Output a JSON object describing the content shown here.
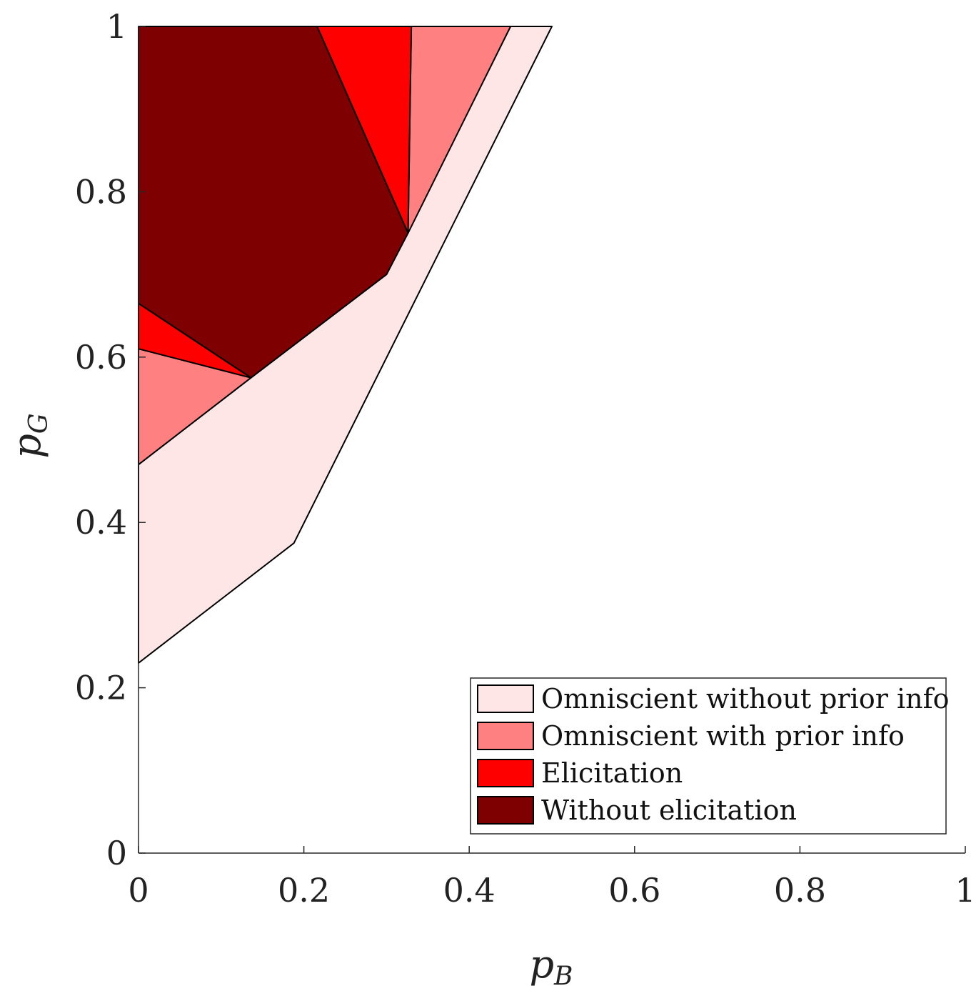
{
  "chart_data": {
    "type": "area",
    "title": "",
    "xlabel": {
      "main": "p",
      "sub": "B"
    },
    "ylabel": {
      "main": "p",
      "sub": "G"
    },
    "xlim": [
      0,
      1
    ],
    "ylim": [
      0,
      1
    ],
    "x_ticks": [
      {
        "value": 0,
        "label": "0"
      },
      {
        "value": 0.2,
        "label": "0.2"
      },
      {
        "value": 0.4,
        "label": "0.4"
      },
      {
        "value": 0.6,
        "label": "0.6"
      },
      {
        "value": 0.8,
        "label": "0.8"
      },
      {
        "value": 1,
        "label": "1"
      }
    ],
    "y_ticks": [
      {
        "value": 0,
        "label": "0"
      },
      {
        "value": 0.2,
        "label": "0.2"
      },
      {
        "value": 0.4,
        "label": "0.4"
      },
      {
        "value": 0.6,
        "label": "0.6"
      },
      {
        "value": 0.8,
        "label": "0.8"
      },
      {
        "value": 1,
        "label": "1"
      }
    ],
    "grid": false,
    "legend_position": "bottom-right",
    "series": [
      {
        "name": "Omniscient without prior info",
        "color": "#ffe6e6",
        "polygons": [
          [
            [
              0,
              0.23
            ],
            [
              0.188,
              0.375
            ],
            [
              0.5,
              1
            ],
            [
              0.45,
              1
            ],
            [
              0.3,
              0.7
            ],
            [
              0.136,
              0.575
            ],
            [
              0,
              0.47
            ]
          ]
        ]
      },
      {
        "name": "Omniscient with prior info",
        "color": "#ff8080",
        "polygons": [
          [
            [
              0,
              0.47
            ],
            [
              0.136,
              0.575
            ],
            [
              0,
              0.61
            ]
          ],
          [
            [
              0.33,
              1
            ],
            [
              0.45,
              1
            ],
            [
              0.326,
              0.75
            ]
          ]
        ]
      },
      {
        "name": "Elicitation",
        "color": "#ff0000",
        "polygons": [
          [
            [
              0,
              0.61
            ],
            [
              0.136,
              0.575
            ],
            [
              0,
              0.665
            ]
          ],
          [
            [
              0.216,
              1
            ],
            [
              0.33,
              1
            ],
            [
              0.326,
              0.75
            ]
          ]
        ]
      },
      {
        "name": "Without elicitation",
        "color": "#7f0000",
        "polygons": [
          [
            [
              0,
              0.665
            ],
            [
              0.136,
              0.575
            ],
            [
              0.3,
              0.7
            ],
            [
              0.326,
              0.75
            ],
            [
              0.216,
              1
            ],
            [
              0,
              1
            ]
          ]
        ]
      }
    ]
  }
}
